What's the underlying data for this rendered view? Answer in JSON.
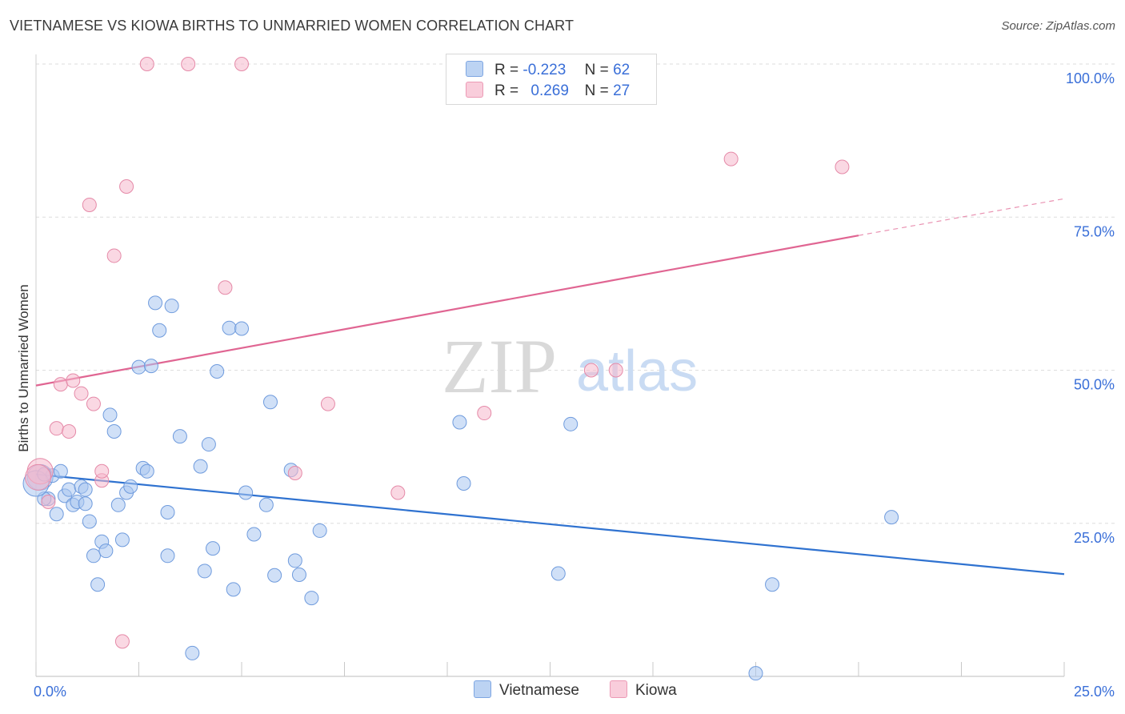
{
  "header": {
    "title": "VIETNAMESE VS KIOWA BIRTHS TO UNMARRIED WOMEN CORRELATION CHART",
    "source": "Source: ZipAtlas.com"
  },
  "watermark": {
    "zip": "ZIP",
    "atlas": "atlas"
  },
  "legend": {
    "rows": [
      {
        "r_label": "R =",
        "r_value": "-0.223",
        "n_label": "N =",
        "n_value": "62",
        "color": "#a9c6f0"
      },
      {
        "r_label": "R =",
        "r_value": "0.269",
        "n_label": "N =",
        "n_value": "27",
        "color": "#f6b8cc"
      }
    ]
  },
  "bottom_legend": {
    "vietnamese": "Vietnamese",
    "kiowa": "Kiowa"
  },
  "chart_data": {
    "type": "scatter",
    "title": "VIETNAMESE VS KIOWA BIRTHS TO UNMARRIED WOMEN CORRELATION CHART",
    "xlabel": "",
    "ylabel": "Births to Unmarried Women",
    "xlim": [
      0,
      25
    ],
    "ylim": [
      0,
      100
    ],
    "x_tick_labels": [
      "0.0%",
      "25.0%"
    ],
    "y_tick_labels": [
      "25.0%",
      "50.0%",
      "75.0%",
      "100.0%"
    ],
    "y_ticks": [
      25,
      50,
      75,
      100
    ],
    "grid": true,
    "legend_position": "top-center",
    "series": [
      {
        "name": "Vietnamese",
        "color": "#a9c6f0",
        "stroke": "#6f9bdd",
        "trend": {
          "x0": 0,
          "y0": 33.0,
          "x1": 25,
          "y1": 16.7,
          "color": "#2f72d0"
        },
        "points": [
          [
            0.1,
            32.5
          ],
          [
            0.3,
            29.0
          ],
          [
            0.4,
            32.8
          ],
          [
            0.5,
            26.5
          ],
          [
            0.6,
            33.5
          ],
          [
            0.7,
            29.5
          ],
          [
            0.8,
            30.5
          ],
          [
            0.9,
            28.0
          ],
          [
            1.0,
            28.5
          ],
          [
            1.1,
            31.0
          ],
          [
            1.2,
            28.2
          ],
          [
            1.2,
            30.5
          ],
          [
            1.3,
            25.3
          ],
          [
            1.4,
            19.7
          ],
          [
            1.5,
            15.0
          ],
          [
            1.6,
            22.0
          ],
          [
            1.7,
            20.5
          ],
          [
            1.8,
            42.7
          ],
          [
            1.9,
            40.0
          ],
          [
            2.0,
            28.0
          ],
          [
            2.1,
            22.3
          ],
          [
            2.2,
            30.0
          ],
          [
            2.3,
            31.0
          ],
          [
            2.5,
            50.5
          ],
          [
            2.6,
            34.0
          ],
          [
            2.7,
            33.5
          ],
          [
            2.8,
            50.7
          ],
          [
            2.9,
            61.0
          ],
          [
            3.0,
            56.5
          ],
          [
            3.2,
            19.7
          ],
          [
            3.2,
            26.8
          ],
          [
            3.3,
            60.5
          ],
          [
            3.5,
            39.2
          ],
          [
            3.8,
            3.8
          ],
          [
            4.0,
            34.3
          ],
          [
            4.1,
            17.2
          ],
          [
            4.2,
            37.9
          ],
          [
            4.3,
            20.9
          ],
          [
            4.4,
            49.8
          ],
          [
            4.7,
            56.9
          ],
          [
            4.8,
            14.2
          ],
          [
            5.0,
            56.8
          ],
          [
            5.1,
            30.0
          ],
          [
            5.3,
            23.2
          ],
          [
            5.6,
            28.0
          ],
          [
            5.7,
            44.8
          ],
          [
            5.8,
            16.5
          ],
          [
            6.2,
            33.7
          ],
          [
            6.3,
            18.9
          ],
          [
            6.4,
            16.6
          ],
          [
            6.7,
            12.8
          ],
          [
            6.9,
            23.8
          ],
          [
            10.3,
            41.5
          ],
          [
            10.4,
            31.5
          ],
          [
            12.7,
            16.8
          ],
          [
            13.0,
            41.2
          ],
          [
            17.9,
            15.0
          ],
          [
            17.5,
            0.5
          ],
          [
            20.8,
            26.0
          ],
          [
            0.2,
            29.0
          ],
          [
            0.0,
            31.5
          ],
          [
            0.2,
            33.0
          ]
        ]
      },
      {
        "name": "Kiowa",
        "color": "#f6b8cc",
        "stroke": "#e58aa8",
        "trend": {
          "x0": 0,
          "y0": 47.5,
          "x1": 20.0,
          "y1": 72.0,
          "x2": 25,
          "y2": 78.0,
          "color": "#e06592"
        },
        "points": [
          [
            0.1,
            33.5
          ],
          [
            0.3,
            28.5
          ],
          [
            0.5,
            40.5
          ],
          [
            0.6,
            47.7
          ],
          [
            0.8,
            40.0
          ],
          [
            0.9,
            48.3
          ],
          [
            1.1,
            46.2
          ],
          [
            1.3,
            77.0
          ],
          [
            1.4,
            44.5
          ],
          [
            1.6,
            32.0
          ],
          [
            1.6,
            33.5
          ],
          [
            1.9,
            68.7
          ],
          [
            2.1,
            5.7
          ],
          [
            2.2,
            80.0
          ],
          [
            2.7,
            100.0
          ],
          [
            3.7,
            100.0
          ],
          [
            4.6,
            63.5
          ],
          [
            5.0,
            100.0
          ],
          [
            6.3,
            33.2
          ],
          [
            7.1,
            44.5
          ],
          [
            8.8,
            30.0
          ],
          [
            10.9,
            43.0
          ],
          [
            13.5,
            50.0
          ],
          [
            14.1,
            50.0
          ],
          [
            16.9,
            84.5
          ],
          [
            19.6,
            83.2
          ],
          [
            0.05,
            32.5
          ]
        ]
      }
    ]
  }
}
